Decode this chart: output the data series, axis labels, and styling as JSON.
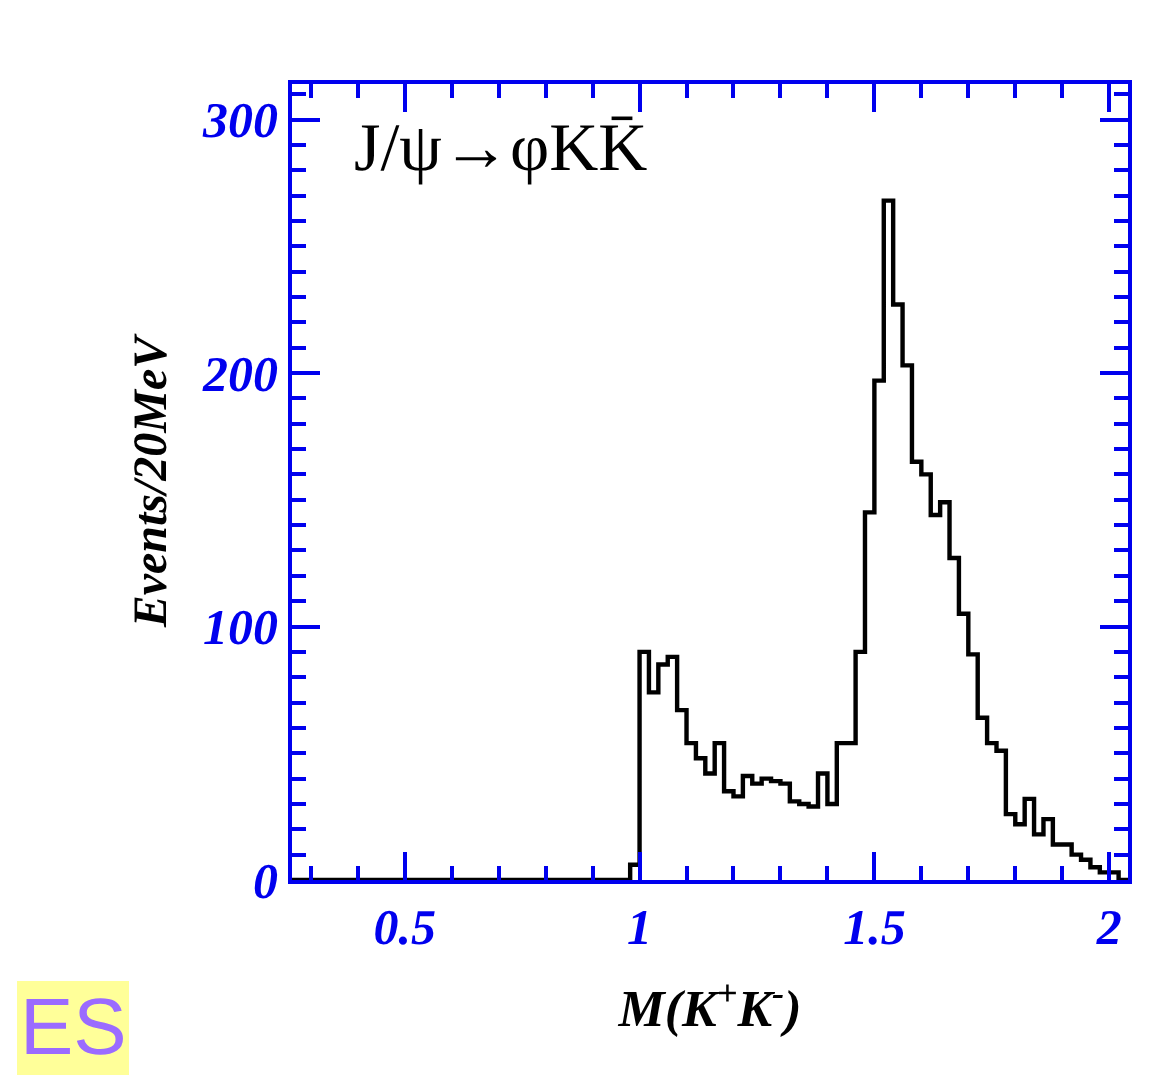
{
  "chart_data": {
    "type": "histogram",
    "xlabel": "M(K$^{+}$K$^{-}$)",
    "ylabel": "Events/20MeV",
    "annotations": [
      "J/ψ→φKK̄",
      "ES"
    ],
    "bins": [
      0.26,
      0.28,
      0.3,
      0.32,
      0.34,
      0.36,
      0.38,
      0.4,
      0.42,
      0.44,
      0.46,
      0.48,
      0.5,
      0.52,
      0.54,
      0.56,
      0.58,
      0.6,
      0.62,
      0.64,
      0.66,
      0.68,
      0.7,
      0.72,
      0.74,
      0.76,
      0.78,
      0.8,
      0.82,
      0.84,
      0.86,
      0.88,
      0.9,
      0.92,
      0.94,
      0.96,
      0.98,
      1.0,
      1.02,
      1.04,
      1.06,
      1.08,
      1.1,
      1.12,
      1.14,
      1.16,
      1.18,
      1.2,
      1.22,
      1.24,
      1.26,
      1.28,
      1.3,
      1.32,
      1.34,
      1.36,
      1.38,
      1.4,
      1.42,
      1.44,
      1.46,
      1.48,
      1.5,
      1.52,
      1.54,
      1.56,
      1.58,
      1.6,
      1.62,
      1.64,
      1.66,
      1.68,
      1.7,
      1.72,
      1.74,
      1.76,
      1.78,
      1.8,
      1.82,
      1.84,
      1.86,
      1.88,
      1.9,
      1.92,
      1.94,
      1.96,
      1.98,
      2.0,
      2.02,
      2.04
    ],
    "values": [
      0,
      0,
      0,
      0,
      0,
      0,
      0,
      0,
      0,
      0,
      0,
      0,
      0,
      0,
      0,
      0,
      0,
      0,
      0,
      0,
      0,
      0,
      0,
      0,
      0,
      0,
      0,
      0,
      0,
      0,
      0,
      0,
      0,
      0,
      0,
      0,
      6,
      90,
      74,
      85,
      88,
      67,
      54,
      48,
      42,
      54,
      35,
      33,
      41,
      38,
      40,
      39,
      38,
      31,
      30,
      29,
      42,
      30,
      54,
      54,
      90,
      145,
      197,
      268,
      227,
      203,
      165,
      160,
      144,
      149,
      127,
      105,
      89,
      64,
      54,
      51,
      26,
      22,
      32,
      18,
      24,
      14,
      14,
      10,
      8,
      5,
      3,
      3,
      0
    ],
    "color": "#000000",
    "xlim": [
      0.26,
      2.04
    ],
    "xticks": [
      0.5,
      1,
      1.5,
      2
    ],
    "ylim": [
      0,
      314
    ],
    "yticks": [
      0,
      100,
      200,
      300
    ]
  }
}
